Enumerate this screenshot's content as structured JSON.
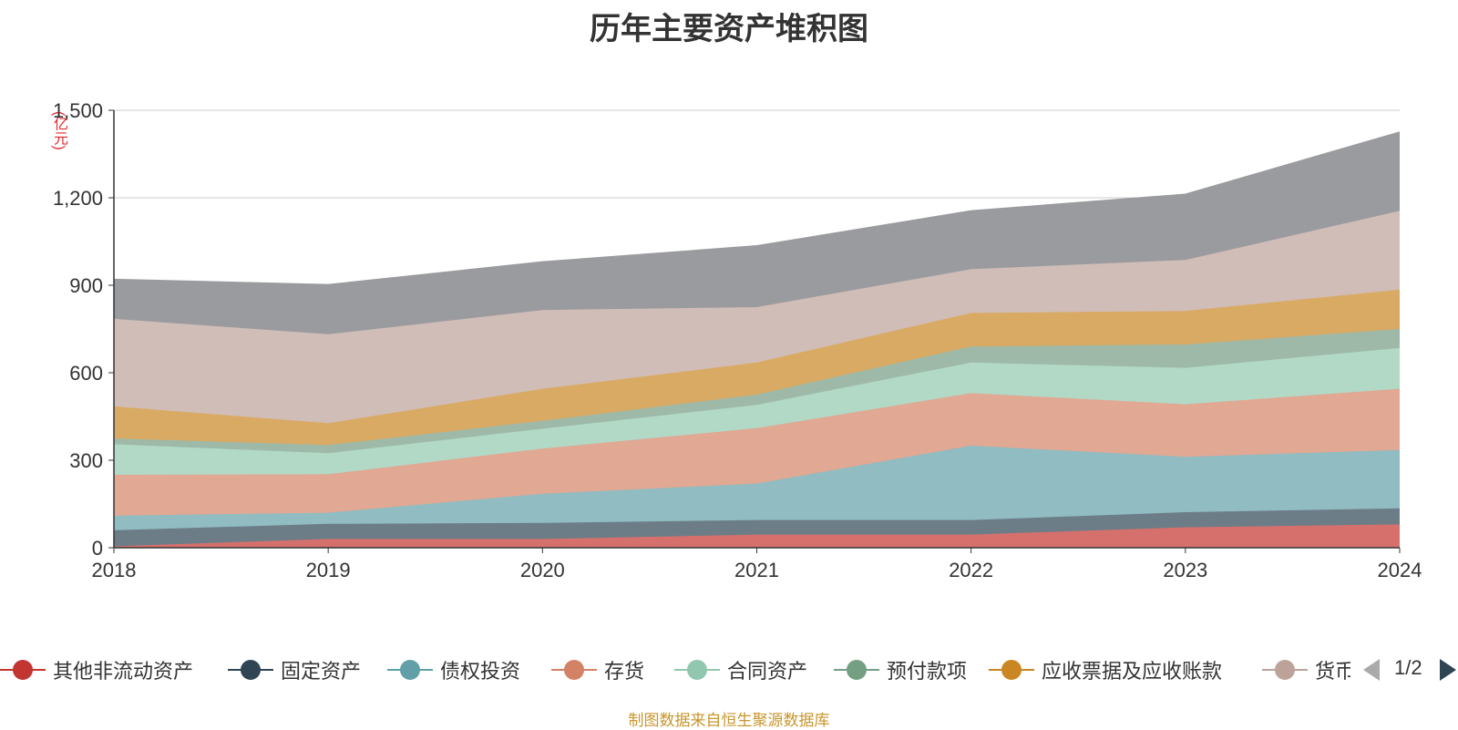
{
  "chart_data": {
    "type": "area",
    "stacked": true,
    "title": "历年主要资产堆积图",
    "ylabel": "(亿元)",
    "ylim": [
      0,
      1500
    ],
    "yticks": [
      "0",
      "300",
      "600",
      "900",
      "1,200",
      "1,500"
    ],
    "ytick_values": [
      0,
      300,
      600,
      900,
      1200,
      1500
    ],
    "grid": true,
    "legend_position": "bottom",
    "x": [
      "2018",
      "2019",
      "2020",
      "2021",
      "2022",
      "2023",
      "2024"
    ],
    "series": [
      {
        "name": "其他非流动资产",
        "color": "#c23531",
        "area_color": "#d6706d",
        "values": [
          5,
          30,
          30,
          45,
          45,
          70,
          80
        ]
      },
      {
        "name": "固定资产",
        "color": "#2f4554",
        "area_color": "#6d7d88",
        "values": [
          55,
          52,
          55,
          50,
          50,
          52,
          55
        ]
      },
      {
        "name": "债权投资",
        "color": "#61a0a8",
        "area_color": "#90bcc2",
        "values": [
          50,
          38,
          100,
          125,
          255,
          190,
          200
        ]
      },
      {
        "name": "存货",
        "color": "#d48265",
        "area_color": "#e1a893",
        "values": [
          140,
          132,
          155,
          190,
          180,
          180,
          210
        ]
      },
      {
        "name": "合同资产",
        "color": "#91c7ae",
        "area_color": "#b2d8c6",
        "values": [
          105,
          72,
          68,
          80,
          105,
          125,
          140
        ]
      },
      {
        "name": "预付款项",
        "color": "#749f83",
        "area_color": "#9eb9a8",
        "values": [
          20,
          28,
          27,
          35,
          55,
          80,
          65
        ]
      },
      {
        "name": "应收票据及应收账款",
        "color": "#ca8622",
        "area_color": "#d9aa64",
        "values": [
          110,
          75,
          110,
          110,
          115,
          115,
          135
        ]
      },
      {
        "name": "货币资金",
        "color": "#bda29a",
        "area_color": "#d1bdb8",
        "values": [
          300,
          305,
          270,
          190,
          150,
          175,
          270
        ]
      },
      {
        "name": "",
        "color": "#6e7074",
        "area_color": "#9a9b9e",
        "values": [
          135,
          170,
          165,
          210,
          200,
          225,
          270
        ]
      }
    ]
  },
  "legend": {
    "items": [
      {
        "label": "其他非流动资产",
        "color": "#c23531"
      },
      {
        "label": "固定资产",
        "color": "#2f4554"
      },
      {
        "label": "债权投资",
        "color": "#61a0a8"
      },
      {
        "label": "存货",
        "color": "#d48265"
      },
      {
        "label": "合同资产",
        "color": "#91c7ae"
      },
      {
        "label": "预付款项",
        "color": "#749f83"
      },
      {
        "label": "应收票据及应收账款",
        "color": "#ca8622"
      },
      {
        "label": "货币资金",
        "color": "#bda29a"
      }
    ],
    "page_indicator": "1/2"
  },
  "source_note": "制图数据来自恒生聚源数据库"
}
